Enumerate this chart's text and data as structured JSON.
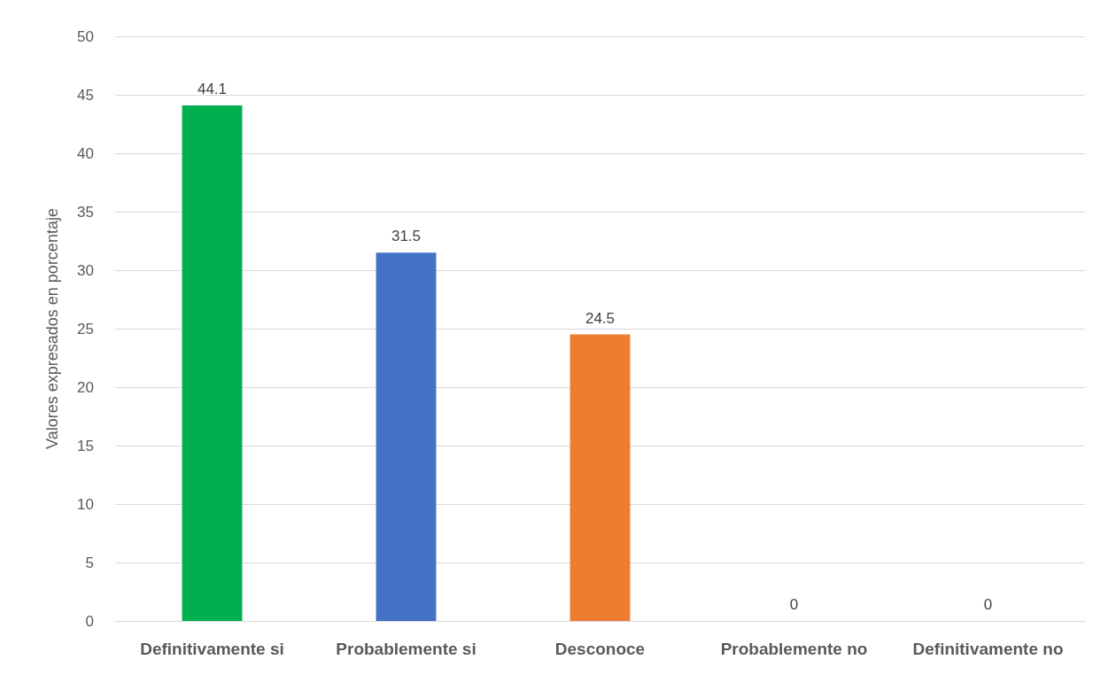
{
  "chart_data": {
    "type": "bar",
    "ylabel": "Valores expresados en porcentaje",
    "categories": [
      "Definitivamente si",
      "Probablemente si",
      "Desconoce",
      "Probablemente no",
      "Definitivamente no"
    ],
    "values": [
      44.1,
      31.5,
      24.5,
      0,
      0
    ],
    "colors": [
      "#00b050",
      "#4472c4",
      "#ed7d31",
      "#a5a5a5",
      "#ffc000"
    ],
    "ylim": [
      0,
      50
    ],
    "yticks": [
      0,
      5,
      10,
      15,
      20,
      25,
      30,
      35,
      40,
      45,
      50
    ],
    "grid": "y",
    "data_labels": true
  }
}
